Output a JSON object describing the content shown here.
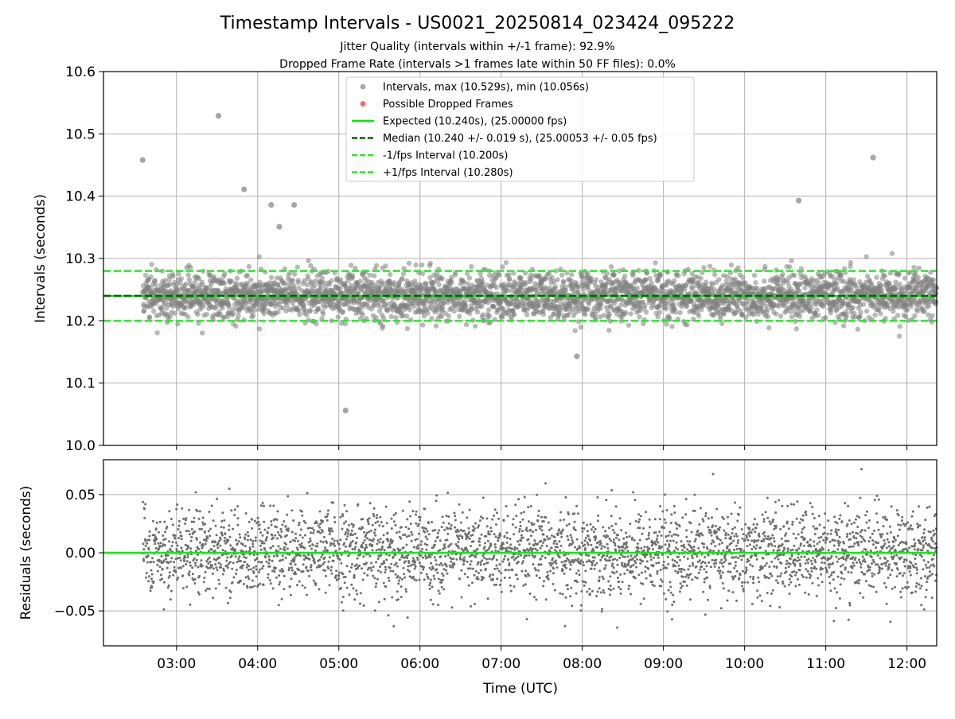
{
  "colors": {
    "expected": "#00ee00",
    "median": "#006400",
    "fps_interval": "#22ee22",
    "scatter": "#808080",
    "dropped": "#ff5555",
    "grid": "#b0b0b0"
  },
  "chart_data": [
    {
      "type": "scatter",
      "title": "Timestamp Intervals - US0021_20250814_023424_095222",
      "subtitle_1": "Jitter Quality (intervals within +/-1 frame): 92.9%",
      "subtitle_2": "Dropped Frame Rate (intervals >1 frames late within 50 FF files): 0.0%",
      "ylabel": "Intervals (seconds)",
      "xlabel": "",
      "ylim": [
        10.0,
        10.6
      ],
      "yticks": [
        "10.0",
        "10.1",
        "10.2",
        "10.3",
        "10.4",
        "10.5",
        "10.6"
      ],
      "grid": true,
      "legend_position": "upper-center",
      "legend": [
        "Intervals, max (10.529s), min (10.056s)",
        "Possible Dropped Frames",
        "Expected (10.240s), (25.00000 fps)",
        "Median (10.240 +/- 0.019 s), (25.00053 +/- 0.05 fps)",
        "-1/fps Interval (10.200s)",
        "+1/fps Interval (10.280s)"
      ],
      "reference_lines": {
        "expected": 10.24,
        "median": 10.24,
        "minus_one_fps": 10.2,
        "plus_one_fps": 10.28
      },
      "series": [
        {
          "name": "Intervals, max (10.529s), min (10.056s)",
          "max": 10.529,
          "min": 10.056,
          "median": 10.24,
          "std": 0.019,
          "notable_points": [
            {
              "x": "02:35",
              "y": 10.458
            },
            {
              "x": "03:31",
              "y": 10.529
            },
            {
              "x": "03:50",
              "y": 10.411
            },
            {
              "x": "04:10",
              "y": 10.386
            },
            {
              "x": "04:16",
              "y": 10.351
            },
            {
              "x": "04:27",
              "y": 10.386
            },
            {
              "x": "05:05",
              "y": 10.056
            },
            {
              "x": "07:56",
              "y": 10.143
            },
            {
              "x": "10:40",
              "y": 10.393
            },
            {
              "x": "11:35",
              "y": 10.462
            }
          ]
        }
      ]
    },
    {
      "type": "scatter",
      "title": "",
      "xlabel": "Time (UTC)",
      "ylabel": "Residuals (seconds)",
      "xlim": [
        "02:06",
        "12:22"
      ],
      "ylim": [
        -0.08,
        0.08
      ],
      "yticks": [
        "−0.05",
        "0.00",
        "0.05"
      ],
      "xticks": [
        "03:00",
        "04:00",
        "05:00",
        "06:00",
        "07:00",
        "08:00",
        "09:00",
        "10:00",
        "11:00",
        "12:00"
      ],
      "grid": true,
      "reference_lines": {
        "zero": 0.0
      },
      "series": [
        {
          "name": "",
          "approx_range": [
            -0.075,
            0.075
          ]
        }
      ]
    }
  ]
}
